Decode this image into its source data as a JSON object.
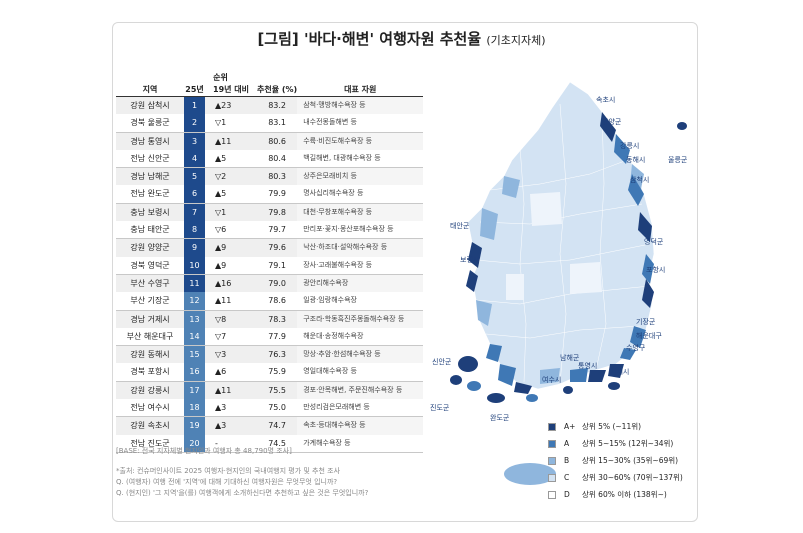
{
  "title": {
    "main": "[그림] '바다·해변' 여행자원 추천율",
    "sub": "(기초지자체)"
  },
  "table": {
    "headers": {
      "region": "지역",
      "rank_group": "순위",
      "rank25": "25년",
      "vs19": "19년 대비",
      "rate": "추천율 (%)",
      "rep": "대표 자원"
    },
    "rows": [
      {
        "region": "강원 삼척시",
        "rank": "1",
        "change": "▲23",
        "rate": "83.2",
        "rep": "삼척·맹방해수욕장 등",
        "grade": "A+"
      },
      {
        "region": "경북 울릉군",
        "rank": "2",
        "change": "▽1",
        "rate": "83.1",
        "rep": "내수전몽돌해변 등",
        "grade": "A+"
      },
      {
        "region": "경남 통영시",
        "rank": "3",
        "change": "▲11",
        "rate": "80.6",
        "rep": "수륙·비진도해수욕장 등",
        "grade": "A+"
      },
      {
        "region": "전남 신안군",
        "rank": "4",
        "change": "▲5",
        "rate": "80.4",
        "rep": "백길해변, 대광해수욕장 등",
        "grade": "A+"
      },
      {
        "region": "경남 남해군",
        "rank": "5",
        "change": "▽2",
        "rate": "80.3",
        "rep": "상주은모래비치 등",
        "grade": "A+"
      },
      {
        "region": "전남 완도군",
        "rank": "6",
        "change": "▲5",
        "rate": "79.9",
        "rep": "명사십리해수욕장 등",
        "grade": "A+"
      },
      {
        "region": "충남 보령시",
        "rank": "7",
        "change": "▽1",
        "rate": "79.8",
        "rep": "대천·무창포해수욕장 등",
        "grade": "A+"
      },
      {
        "region": "충남 태안군",
        "rank": "8",
        "change": "▽6",
        "rate": "79.7",
        "rep": "만리포·꽃지·몽산포해수욕장 등",
        "grade": "A+"
      },
      {
        "region": "강원 양양군",
        "rank": "9",
        "change": "▲9",
        "rate": "79.6",
        "rep": "낙산·하조대·설악해수욕장 등",
        "grade": "A+"
      },
      {
        "region": "경북 영덕군",
        "rank": "10",
        "change": "▲9",
        "rate": "79.1",
        "rep": "장사·고래불해수욕장 등",
        "grade": "A+"
      },
      {
        "region": "부산 수영구",
        "rank": "11",
        "change": "▲16",
        "rate": "79.0",
        "rep": "광안리해수욕장",
        "grade": "A+"
      },
      {
        "region": "부산 기장군",
        "rank": "12",
        "change": "▲11",
        "rate": "78.6",
        "rep": "일광·임랑해수욕장",
        "grade": "A"
      },
      {
        "region": "경남 거제시",
        "rank": "13",
        "change": "▽8",
        "rate": "78.3",
        "rep": "구조라·학동흑진주몽돌해수욕장 등",
        "grade": "A"
      },
      {
        "region": "부산 해운대구",
        "rank": "14",
        "change": "▽7",
        "rate": "77.9",
        "rep": "해운대·송정해수욕장",
        "grade": "A"
      },
      {
        "region": "강원 동해시",
        "rank": "15",
        "change": "▽3",
        "rate": "76.3",
        "rep": "망상·추암·한섬해수욕장 등",
        "grade": "A"
      },
      {
        "region": "경북 포항시",
        "rank": "16",
        "change": "▲6",
        "rate": "75.9",
        "rep": "영일대해수욕장 등",
        "grade": "A"
      },
      {
        "region": "강원 강릉시",
        "rank": "17",
        "change": "▲11",
        "rate": "75.5",
        "rep": "경포·안목해변, 주문진해수욕장 등",
        "grade": "A"
      },
      {
        "region": "전남 여수시",
        "rank": "18",
        "change": "▲3",
        "rate": "75.0",
        "rep": "만성리검은모래해변 등",
        "grade": "A"
      },
      {
        "region": "강원 속초시",
        "rank": "19",
        "change": "▲3",
        "rate": "74.7",
        "rep": "속초·등대해수욕장 등",
        "grade": "A"
      },
      {
        "region": "전남 진도군",
        "rank": "20",
        "change": "-",
        "rate": "74.5",
        "rep": "가계해수욕장 등",
        "grade": "A"
      }
    ]
  },
  "chart_data": {
    "type": "table",
    "title": "[그림] '바다·해변' 여행자원 추천율 (기초지자체)",
    "columns": [
      "지역",
      "25년 순위",
      "19년 대비",
      "추천율 (%)",
      "대표 자원"
    ],
    "values": [
      83.2,
      83.1,
      80.6,
      80.4,
      80.3,
      79.9,
      79.8,
      79.7,
      79.6,
      79.1,
      79.0,
      78.6,
      78.3,
      77.9,
      76.3,
      75.9,
      75.5,
      75.0,
      74.7,
      74.5
    ],
    "map_labels": [
      "속초시",
      "양양군",
      "강릉시",
      "동해시",
      "울릉군",
      "삼척시",
      "태안군",
      "보령시",
      "영덕군",
      "포항시",
      "기장군",
      "해운대구",
      "수영구",
      "신안군",
      "여수시",
      "통영시",
      "거제시",
      "남해군",
      "진도군",
      "완도군"
    ],
    "legend": [
      {
        "grade": "A+",
        "label": "상위 5% (~11위)",
        "color": "#1e3f7a"
      },
      {
        "grade": "A",
        "label": "상위 5~15% (12위~34위)",
        "color": "#3f78b5"
      },
      {
        "grade": "B",
        "label": "상위 15~30% (35위~69위)",
        "color": "#8fb6dd"
      },
      {
        "grade": "C",
        "label": "상위 30~60% (70위~137위)",
        "color": "#d3e3f3"
      },
      {
        "grade": "D",
        "label": "상위 60% 이하 (138위~)",
        "color": "#ffffff"
      }
    ]
  },
  "footer": {
    "base": "[BASE: 전국 지자체별 현지인과 여행자 총 48,790명 조사]",
    "notes": [
      "*출처: 컨슈머인사이트 2025 여행자·현지인의 국내여행지 평가 및 추천 조사",
      "Q. (여행자) 여행 전에 '지역'에 대해 기대하신 여행자원은 무엇무엇 입니까?",
      "Q. (현지인) '그 지역'을(를) 여행객에게 소개하신다면 추천하고 싶은 것은 무엇입니까?"
    ]
  }
}
